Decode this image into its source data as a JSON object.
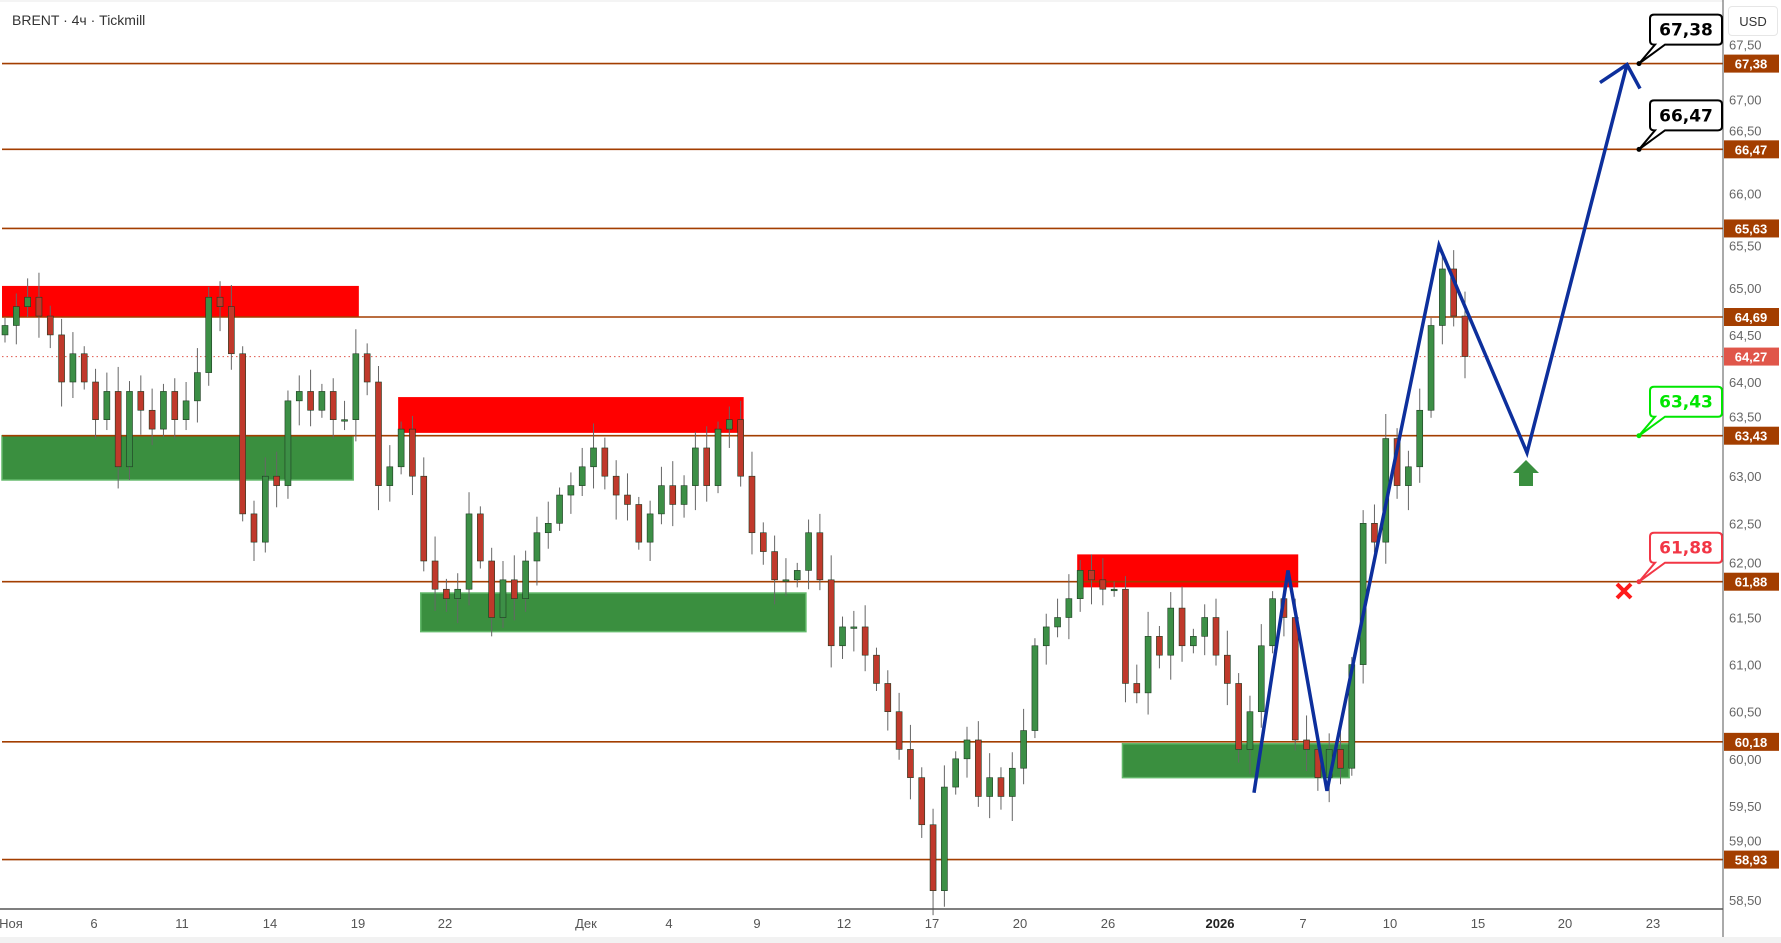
{
  "header": {
    "title": "BRENT · 4ч · Tickmill",
    "currency": "USD"
  },
  "colors": {
    "level": "#a33e00",
    "bull": "#3c8f46",
    "bear": "#c0392b",
    "supply": "#ff0000",
    "demand": "#3a8f3f",
    "path": "#0d2f9c",
    "current": "#e0564a",
    "target": "#000000",
    "entry": "#00e600",
    "stop": "#f23645"
  },
  "chart_data": {
    "type": "candlestick",
    "symbol": "BRENT",
    "timeframe": "4ч",
    "ylim": [
      58.4,
      67.7
    ],
    "y_ticks": [
      "67,50",
      "67,00",
      "66,50",
      "66,00",
      "65,50",
      "65,00",
      "64,50",
      "64,00",
      "63,50",
      "63,00",
      "62,50",
      "62,00",
      "61,50",
      "61,00",
      "60,50",
      "60,00",
      "59,50",
      "59,00",
      "58,50"
    ],
    "x_ticks": [
      {
        "label": "Ноя",
        "bold": false
      },
      {
        "label": "6",
        "bold": false
      },
      {
        "label": "11",
        "bold": false
      },
      {
        "label": "14",
        "bold": false
      },
      {
        "label": "19",
        "bold": false
      },
      {
        "label": "22",
        "bold": false
      },
      {
        "label": "Дек",
        "bold": false
      },
      {
        "label": "4",
        "bold": false
      },
      {
        "label": "9",
        "bold": false
      },
      {
        "label": "12",
        "bold": false
      },
      {
        "label": "17",
        "bold": false
      },
      {
        "label": "20",
        "bold": false
      },
      {
        "label": "26",
        "bold": false
      },
      {
        "label": "2026",
        "bold": true
      },
      {
        "label": "7",
        "bold": false
      },
      {
        "label": "10",
        "bold": false
      },
      {
        "label": "15",
        "bold": false
      },
      {
        "label": "20",
        "bold": false
      },
      {
        "label": "23",
        "bold": false
      }
    ],
    "closes": [
      64.6,
      64.8,
      64.9,
      64.7,
      64.5,
      64.0,
      64.3,
      64.0,
      63.6,
      63.9,
      63.1,
      63.9,
      63.7,
      63.5,
      63.9,
      63.6,
      63.8,
      64.1,
      64.9,
      64.8,
      64.3,
      62.6,
      62.3,
      63.0,
      62.9,
      63.8,
      63.9,
      63.7,
      63.9,
      63.6,
      63.6,
      64.3,
      64.0,
      62.9,
      63.1,
      63.5,
      63.0,
      62.1,
      61.8,
      61.7,
      61.8,
      62.6,
      62.1,
      61.5,
      61.9,
      61.7,
      62.1,
      62.4,
      62.5,
      62.8,
      62.9,
      63.1,
      63.3,
      63.0,
      62.8,
      62.7,
      62.3,
      62.6,
      62.9,
      62.7,
      62.9,
      63.3,
      62.9,
      63.5,
      63.6,
      63.0,
      62.4,
      62.2,
      61.9,
      61.9,
      62.0,
      62.4,
      61.9,
      61.2,
      61.4,
      61.4,
      61.1,
      60.8,
      60.5,
      60.1,
      59.8,
      59.3,
      58.6,
      59.7,
      60.0,
      60.2,
      59.6,
      59.8,
      59.6,
      59.9,
      60.3,
      61.2,
      61.4,
      61.5,
      61.7,
      62.0,
      61.9,
      61.8,
      61.8,
      60.8,
      60.7,
      61.3,
      61.1,
      61.6,
      61.2,
      61.3,
      61.5,
      61.1,
      60.8,
      60.1,
      60.5,
      61.2,
      61.7,
      61.5,
      60.2,
      60.1,
      59.8,
      60.1,
      59.9,
      61.0,
      62.5,
      62.3,
      63.4,
      62.9,
      63.1,
      63.7,
      64.6,
      65.2,
      64.7,
      64.27
    ],
    "levels": [
      {
        "price": 67.38,
        "label": "67,38"
      },
      {
        "price": 66.47,
        "label": "66,47"
      },
      {
        "price": 65.63,
        "label": "65,63"
      },
      {
        "price": 64.69,
        "label": "64,69"
      },
      {
        "price": 63.43,
        "label": "63,43"
      },
      {
        "price": 61.88,
        "label": "61,88"
      },
      {
        "price": 60.18,
        "label": "60,18"
      },
      {
        "price": 58.93,
        "label": "58,93"
      }
    ],
    "current_price": {
      "price": 64.27,
      "label": "64,27"
    },
    "zones": [
      {
        "kind": "supply",
        "from_candle": 0,
        "to_candle": 31,
        "top": 65.02,
        "bottom": 64.69
      },
      {
        "kind": "demand",
        "from_candle": 0,
        "to_candle": 30.5,
        "top": 63.43,
        "bottom": 62.96
      },
      {
        "kind": "supply",
        "from_candle": 35,
        "to_candle": 65,
        "top": 63.84,
        "bottom": 63.46
      },
      {
        "kind": "demand",
        "from_candle": 37,
        "to_candle": 70.5,
        "top": 61.76,
        "bottom": 61.35
      },
      {
        "kind": "supply",
        "from_candle": 95,
        "to_candle": 114,
        "top": 62.17,
        "bottom": 61.82
      },
      {
        "kind": "demand",
        "from_candle": 99,
        "to_candle": 118.5,
        "top": 60.16,
        "bottom": 59.8
      }
    ],
    "callouts": [
      {
        "kind": "target",
        "price": 67.38,
        "label": "67,38"
      },
      {
        "kind": "target",
        "price": 66.47,
        "label": "66,47"
      },
      {
        "kind": "entry",
        "price": 63.43,
        "label": "63,43"
      },
      {
        "kind": "stop",
        "price": 61.88,
        "label": "61,88"
      }
    ],
    "projection_path_prices": [
      59.64,
      62.0,
      59.66,
      65.45,
      63.25,
      67.37
    ]
  }
}
